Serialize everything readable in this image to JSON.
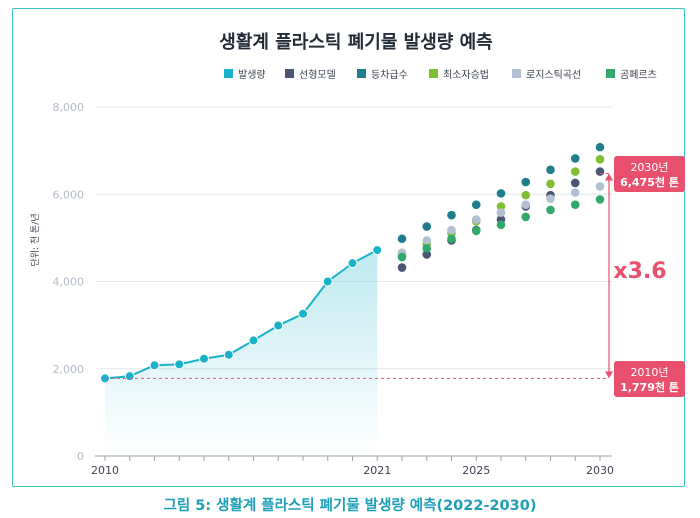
{
  "chart_data": {
    "type": "line",
    "title": "생활계 플라스틱 폐기물 발생량 예측",
    "caption": "그림 5: 생활계 플라스틱 폐기물 발생량 예측(2022-2030)",
    "ylabel": "단위: 천 톤/년",
    "ylim": [
      0,
      8000
    ],
    "yticks": [
      0,
      2000,
      4000,
      6000,
      8000
    ],
    "ytick_labels": [
      "0",
      "2,000",
      "4,000",
      "6,000",
      "8,000"
    ],
    "xlim": [
      2010,
      2030
    ],
    "xticks": [
      2010,
      2021,
      2025,
      2030
    ],
    "xtick_labels": [
      "2010",
      "2021",
      "2025",
      "2030"
    ],
    "grid": true,
    "legend_position": "top-right",
    "series": [
      {
        "name": "발생량",
        "color": "#1ab2c8",
        "x": [
          2010,
          2011,
          2012,
          2013,
          2014,
          2015,
          2016,
          2017,
          2018,
          2019,
          2020,
          2021
        ],
        "values": [
          1779,
          1830,
          2080,
          2100,
          2230,
          2320,
          2650,
          2990,
          3260,
          4000,
          4420,
          4720
        ]
      },
      {
        "name": "선형모델",
        "color": "#4b5675",
        "x": [
          2022,
          2023,
          2024,
          2025,
          2026,
          2027,
          2028,
          2029,
          2030
        ],
        "values": [
          4320,
          4620,
          4940,
          5180,
          5420,
          5720,
          5980,
          6260,
          6520
        ]
      },
      {
        "name": "등차급수",
        "color": "#1f7d8c",
        "x": [
          2022,
          2023,
          2024,
          2025,
          2026,
          2027,
          2028,
          2029,
          2030
        ],
        "values": [
          4980,
          5260,
          5520,
          5760,
          6020,
          6280,
          6560,
          6820,
          7080
        ]
      },
      {
        "name": "최소자승법",
        "color": "#7fbf33",
        "x": [
          2022,
          2023,
          2024,
          2025,
          2026,
          2027,
          2028,
          2029,
          2030
        ],
        "values": [
          4620,
          4860,
          5100,
          5380,
          5720,
          5980,
          6240,
          6520,
          6800
        ]
      },
      {
        "name": "로지스틱곡선",
        "color": "#b3c0d1",
        "x": [
          2022,
          2023,
          2024,
          2025,
          2026,
          2027,
          2028,
          2029,
          2030
        ],
        "values": [
          4660,
          4940,
          5180,
          5420,
          5580,
          5760,
          5900,
          6040,
          6180
        ]
      },
      {
        "name": "곰페르츠",
        "color": "#33a86b",
        "x": [
          2022,
          2023,
          2024,
          2025,
          2026,
          2027,
          2028,
          2029,
          2030
        ],
        "values": [
          4560,
          4760,
          4980,
          5160,
          5300,
          5480,
          5640,
          5760,
          5880
        ]
      }
    ],
    "annotations": {
      "top_box_line1": "2030년",
      "top_box_line2": "6,475천 톤",
      "bottom_box_line1": "2010년",
      "bottom_box_line2": "1,779천 톤",
      "multiplier": "x3.6",
      "accent_color": "#e9506e",
      "top_value": 6475,
      "bottom_value": 1779
    }
  }
}
